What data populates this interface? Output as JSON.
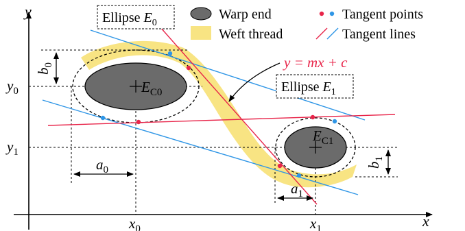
{
  "axes": {
    "x_label": "x",
    "y_label": "y"
  },
  "ticks": {
    "x0": {
      "base": "x",
      "sub": "0"
    },
    "x1": {
      "base": "x",
      "sub": "1"
    },
    "y0": {
      "base": "y",
      "sub": "0"
    },
    "y1": {
      "base": "y",
      "sub": "1"
    }
  },
  "dimensions": {
    "a0": {
      "base": "a",
      "sub": "0"
    },
    "b0": {
      "base": "b",
      "sub": "0"
    },
    "a1": {
      "base": "a",
      "sub": "1"
    },
    "b1": {
      "base": "b",
      "sub": "1"
    }
  },
  "centers": {
    "ec0": {
      "base": "E",
      "sub": "C0"
    },
    "ec1": {
      "base": "E",
      "sub": "C1"
    }
  },
  "callouts": {
    "ellipse0": {
      "text": "Ellipse ",
      "base": "E",
      "sub": "0"
    },
    "ellipse1": {
      "text": "Ellipse ",
      "base": "E",
      "sub": "1"
    },
    "equation": "y = mx + c"
  },
  "legend": {
    "warp_end": "Warp end",
    "weft_thread": "Weft thread",
    "tangent_points": "Tangent points",
    "tangent_lines": "Tangent lines"
  },
  "colors": {
    "red": "#e8254a",
    "blue": "#2f96e6",
    "weft_yellow": "#f8e483",
    "warp_gray": "#6b6b6b"
  }
}
